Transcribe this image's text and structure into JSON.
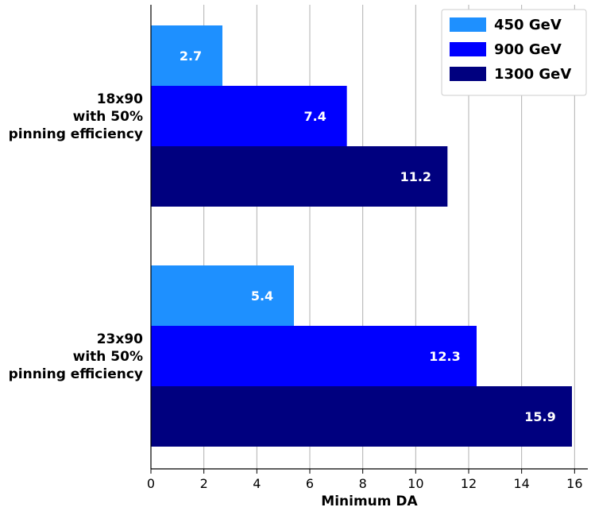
{
  "chart_data": {
    "type": "bar",
    "orientation": "horizontal",
    "categories": [
      [
        "18x90",
        "with 50%",
        "pinning efficiency"
      ],
      [
        "23x90",
        "with 50%",
        "pinning efficiency"
      ]
    ],
    "series": [
      {
        "name": "450 GeV",
        "color": "#1e90ff",
        "values": [
          2.7,
          5.4
        ]
      },
      {
        "name": "900 GeV",
        "color": "#0000ff",
        "values": [
          7.4,
          12.3
        ]
      },
      {
        "name": "1300 GeV",
        "color": "#00007f",
        "values": [
          11.2,
          15.9
        ]
      }
    ],
    "xlabel": "Minimum DA",
    "xlim": [
      0,
      16.5
    ],
    "xticks": [
      0,
      2,
      4,
      6,
      8,
      10,
      12,
      14,
      16
    ],
    "grid": "x",
    "legend_position": "top-right"
  }
}
